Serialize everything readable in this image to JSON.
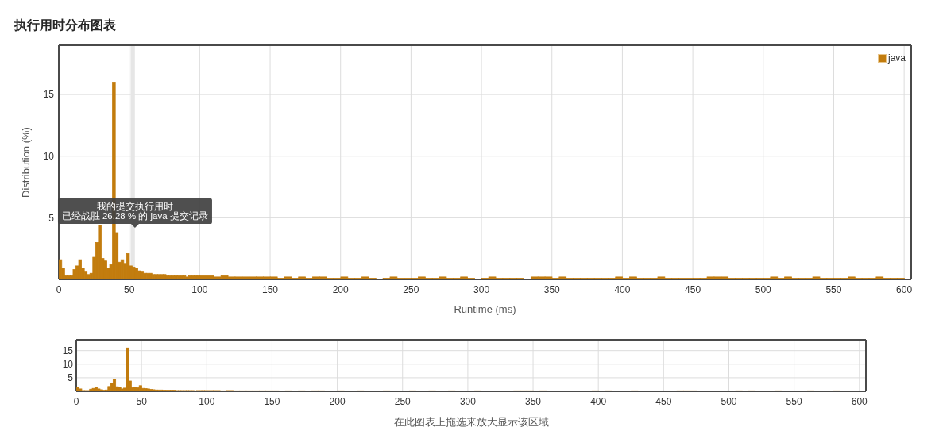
{
  "chart_data": [
    {
      "type": "histogram",
      "title": "执行用时分布图表",
      "xlabel": "Runtime (ms)",
      "ylabel": "Distribution (%)",
      "bins": [
        0,
        2,
        4,
        6,
        8,
        10,
        12,
        14,
        16,
        18,
        20,
        22,
        24,
        26,
        28,
        30,
        32,
        34,
        36,
        38,
        40,
        42,
        44,
        46,
        48,
        50,
        52,
        54,
        56,
        58,
        60,
        62,
        64,
        66,
        68,
        70,
        72,
        74,
        76,
        78,
        80,
        82,
        84,
        86,
        88,
        90,
        92,
        94,
        96,
        98,
        100,
        105,
        110,
        115,
        120,
        125,
        130,
        135,
        140,
        145,
        150,
        155,
        160,
        165,
        170,
        175,
        180,
        185,
        190,
        195,
        200,
        205,
        210,
        215,
        220,
        225,
        230,
        235,
        240,
        245,
        250,
        255,
        260,
        265,
        270,
        275,
        280,
        285,
        290,
        295,
        300,
        305,
        310,
        315,
        320,
        325,
        330,
        335,
        340,
        345,
        350,
        355,
        360,
        365,
        370,
        375,
        380,
        385,
        390,
        395,
        400,
        405,
        410,
        415,
        420,
        425,
        430,
        435,
        440,
        445,
        450,
        455,
        460,
        465,
        470,
        475,
        480,
        485,
        490,
        495,
        500,
        505,
        510,
        515,
        520,
        525,
        530,
        535,
        540,
        545,
        550,
        555,
        560,
        565,
        570,
        575,
        580,
        585,
        590,
        595,
        600
      ],
      "series": [
        {
          "name": "java",
          "color": "#c27c0e",
          "values": [
            1.6,
            0.9,
            0.3,
            0.3,
            0.3,
            0.8,
            1.1,
            1.6,
            0.9,
            0.6,
            0.4,
            0.5,
            1.8,
            3.0,
            4.4,
            1.7,
            1.5,
            0.9,
            1.2,
            16.0,
            3.8,
            1.4,
            1.6,
            1.3,
            2.1,
            1.1,
            1.0,
            0.9,
            0.7,
            0.6,
            0.5,
            0.5,
            0.5,
            0.4,
            0.4,
            0.4,
            0.4,
            0.4,
            0.3,
            0.3,
            0.3,
            0.3,
            0.3,
            0.3,
            0.3,
            0.2,
            0.3,
            0.3,
            0.3,
            0.3,
            0.3,
            0.3,
            0.2,
            0.3,
            0.2,
            0.2,
            0.2,
            0.2,
            0.2,
            0.2,
            0.2,
            0.1,
            0.2,
            0.1,
            0.2,
            0.1,
            0.2,
            0.2,
            0.1,
            0.1,
            0.2,
            0.1,
            0.1,
            0.2,
            0.1,
            0,
            0.1,
            0.2,
            0.1,
            0.1,
            0.1,
            0.2,
            0.1,
            0.1,
            0.2,
            0.1,
            0.1,
            0.2,
            0.1,
            0,
            0.1,
            0.2,
            0.1,
            0.1,
            0.1,
            0.1,
            0,
            0.2,
            0.2,
            0.2,
            0.1,
            0.2,
            0.1,
            0.1,
            0.1,
            0.1,
            0.1,
            0.1,
            0.1,
            0.2,
            0.1,
            0.2,
            0.1,
            0.1,
            0.1,
            0.2,
            0.1,
            0.1,
            0.1,
            0.1,
            0.1,
            0.1,
            0.2,
            0.2,
            0.2,
            0.1,
            0.1,
            0.1,
            0.1,
            0.1,
            0.1,
            0.2,
            0.1,
            0.2,
            0.1,
            0.1,
            0.1,
            0.2,
            0.1,
            0.1,
            0.1,
            0.1,
            0.2,
            0.1,
            0.1,
            0.1,
            0.2,
            0.1,
            0.1,
            0.1
          ]
        }
      ],
      "xlim": [
        0,
        605
      ],
      "xticks": [
        0,
        50,
        100,
        150,
        200,
        250,
        300,
        350,
        400,
        450,
        500,
        550,
        600
      ],
      "ylim": [
        0,
        19
      ],
      "yticks": [
        5,
        10,
        15
      ],
      "grid": true,
      "legend": "top right",
      "bands": [
        {
          "axis": "x",
          "from": 51,
          "to": 54,
          "color": "#e6e6e6"
        }
      ],
      "annotations": [
        {
          "text": "我的提交执行用时",
          "x": 54,
          "y": 4.2
        },
        {
          "text": "已经战胜 26.28 % 的 java 提交记录",
          "x": 54,
          "y": 4.2
        }
      ]
    },
    {
      "type": "histogram",
      "xlabel": "在此图表上拖选来放大显示该区域",
      "bins": [
        0,
        2,
        4,
        6,
        8,
        10,
        12,
        14,
        16,
        18,
        20,
        22,
        24,
        26,
        28,
        30,
        32,
        34,
        36,
        38,
        40,
        42,
        44,
        46,
        48,
        50,
        52,
        54,
        56,
        58,
        60,
        62,
        64,
        66,
        68,
        70,
        72,
        74,
        76,
        78,
        80,
        82,
        84,
        86,
        88,
        90,
        92,
        94,
        96,
        98,
        100,
        105,
        110,
        115,
        120,
        125,
        130,
        135,
        140,
        145,
        150,
        155,
        160,
        165,
        170,
        175,
        180,
        185,
        190,
        195,
        200,
        205,
        210,
        215,
        220,
        225,
        230,
        235,
        240,
        245,
        250,
        255,
        260,
        265,
        270,
        275,
        280,
        285,
        290,
        295,
        300,
        305,
        310,
        315,
        320,
        325,
        330,
        335,
        340,
        345,
        350,
        355,
        360,
        365,
        370,
        375,
        380,
        385,
        390,
        395,
        400,
        405,
        410,
        415,
        420,
        425,
        430,
        435,
        440,
        445,
        450,
        455,
        460,
        465,
        470,
        475,
        480,
        485,
        490,
        495,
        500,
        505,
        510,
        515,
        520,
        525,
        530,
        535,
        540,
        545,
        550,
        555,
        560,
        565,
        570,
        575,
        580,
        585,
        590,
        595,
        600
      ],
      "series": [
        {
          "color": "#c27c0e",
          "values": [
            1.6,
            0.9,
            0.3,
            0.3,
            0.3,
            0.8,
            1.1,
            1.6,
            0.9,
            0.6,
            0.4,
            0.5,
            1.8,
            3.0,
            4.4,
            1.7,
            1.5,
            0.9,
            1.2,
            16.0,
            3.8,
            1.4,
            1.6,
            1.3,
            2.1,
            1.1,
            1.0,
            0.9,
            0.7,
            0.6,
            0.5,
            0.5,
            0.5,
            0.4,
            0.4,
            0.4,
            0.4,
            0.4,
            0.3,
            0.3,
            0.3,
            0.3,
            0.3,
            0.3,
            0.3,
            0.2,
            0.3,
            0.3,
            0.3,
            0.3,
            0.3,
            0.3,
            0.2,
            0.3,
            0.2,
            0.2,
            0.2,
            0.2,
            0.2,
            0.2,
            0.2,
            0.1,
            0.2,
            0.1,
            0.2,
            0.1,
            0.2,
            0.2,
            0.1,
            0.1,
            0.2,
            0.1,
            0.1,
            0.2,
            0.1,
            0,
            0.1,
            0.2,
            0.1,
            0.1,
            0.1,
            0.2,
            0.1,
            0.1,
            0.2,
            0.1,
            0.1,
            0.2,
            0.1,
            0,
            0.1,
            0.2,
            0.1,
            0.1,
            0.1,
            0.1,
            0,
            0.2,
            0.2,
            0.2,
            0.1,
            0.2,
            0.1,
            0.1,
            0.1,
            0.1,
            0.1,
            0.1,
            0.1,
            0.2,
            0.1,
            0.2,
            0.1,
            0.1,
            0.1,
            0.2,
            0.1,
            0.1,
            0.1,
            0.1,
            0.1,
            0.1,
            0.2,
            0.2,
            0.2,
            0.1,
            0.1,
            0.1,
            0.1,
            0.1,
            0.1,
            0.2,
            0.1,
            0.2,
            0.1,
            0.1,
            0.1,
            0.2,
            0.1,
            0.1,
            0.1,
            0.1,
            0.2,
            0.1,
            0.1,
            0.1,
            0.2,
            0.1,
            0.1,
            0.1
          ]
        }
      ],
      "xlim": [
        0,
        605
      ],
      "xticks": [
        0,
        50,
        100,
        150,
        200,
        250,
        300,
        350,
        400,
        450,
        500,
        550,
        600
      ],
      "ylim": [
        0,
        19
      ],
      "yticks": [
        5,
        10,
        15
      ],
      "grid": true
    }
  ]
}
